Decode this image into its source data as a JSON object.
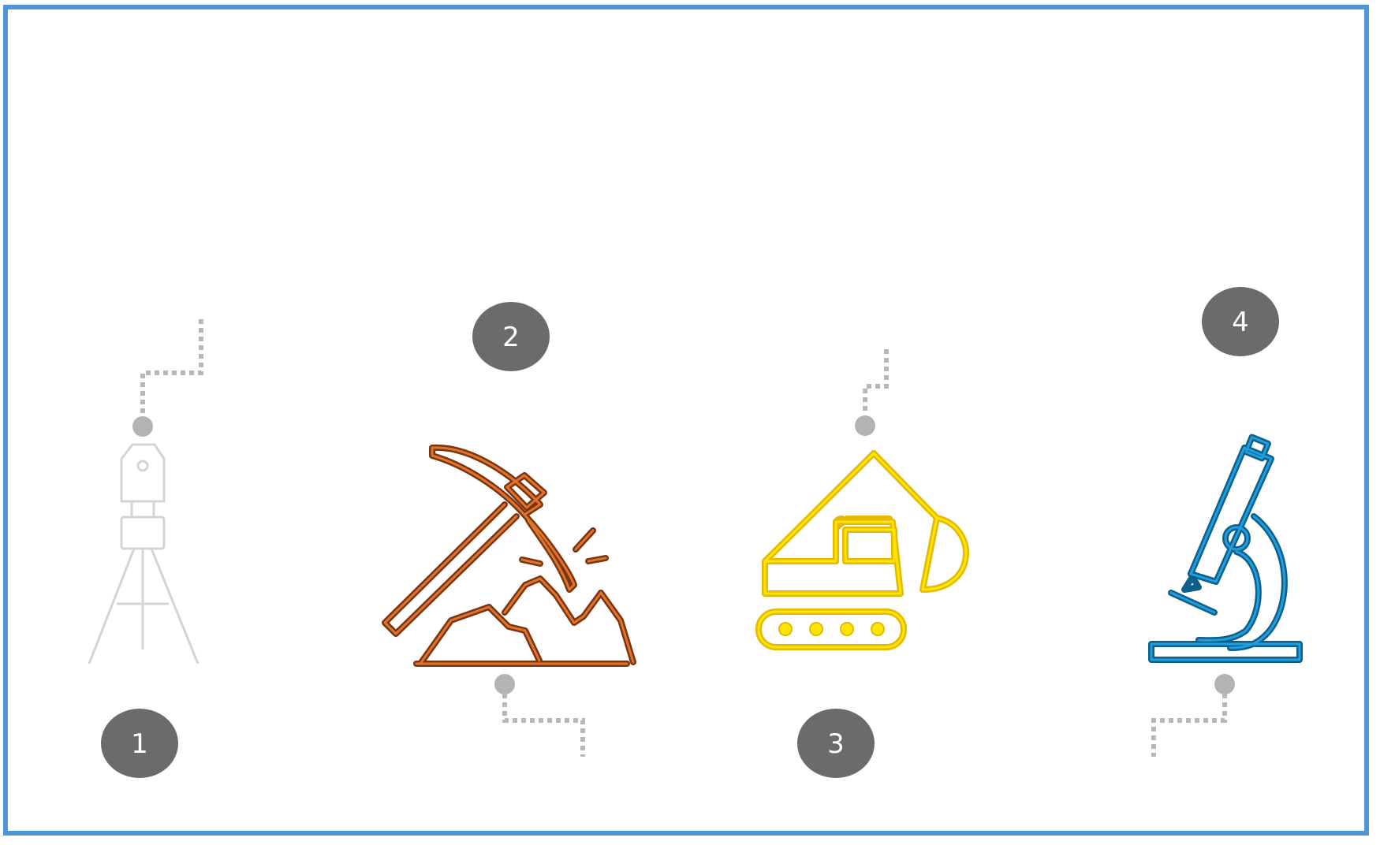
{
  "steps": [
    {
      "number": "1",
      "icon": "surveying-total-station-icon",
      "color": "#d4d4d4"
    },
    {
      "number": "2",
      "icon": "pickaxe-rocks-icon",
      "color": "#c55a1e"
    },
    {
      "number": "3",
      "icon": "excavator-icon",
      "color": "#ffd700"
    },
    {
      "number": "4",
      "icon": "microscope-icon",
      "color": "#1e8bc3"
    }
  ],
  "colors": {
    "frame": "#5095d6",
    "badge": "#6b6b6b",
    "connector": "#b8b8b8"
  }
}
